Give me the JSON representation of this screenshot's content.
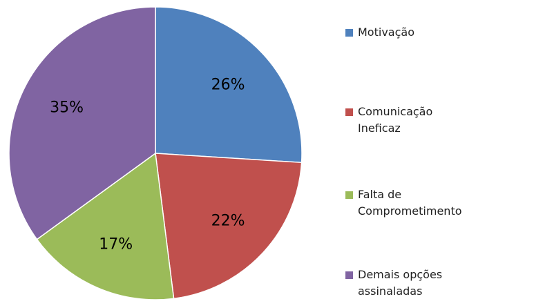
{
  "chart_data": {
    "type": "pie",
    "categories": [
      "Motivação",
      "Comunicação Ineficaz",
      "Falta de Comprometimento",
      "Demais opções assinaladas"
    ],
    "values": [
      26,
      22,
      17,
      35
    ],
    "value_labels": [
      "26%",
      "22%",
      "17%",
      "35%"
    ],
    "colors": [
      "#4f81bd",
      "#c0504d",
      "#9bbb59",
      "#8064a2"
    ],
    "legend": "right"
  }
}
